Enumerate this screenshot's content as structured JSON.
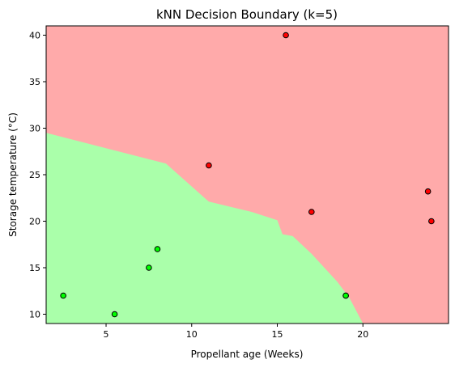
{
  "chart_data": {
    "type": "scatter",
    "title": "kNN Decision Boundary (k=5)",
    "xlabel": "Propellant age (Weeks)",
    "ylabel": "Storage temperature (°C)",
    "xlim": [
      1.5,
      25.0
    ],
    "ylim": [
      9.0,
      41.0
    ],
    "xticks": [
      "5",
      "10",
      "15",
      "20"
    ],
    "yticks": [
      "10",
      "15",
      "20",
      "25",
      "30",
      "35",
      "40"
    ],
    "grid": false,
    "legend": "none",
    "colors": {
      "red_region": "#ffaaaa",
      "green_region": "#aaffaa",
      "red_point": "#ff0000",
      "green_point": "#00ff00",
      "point_edge": "#000000"
    },
    "decision_boundary": {
      "green_region_vertices": [
        [
          1.5,
          29.5
        ],
        [
          8.5,
          26.2
        ],
        [
          11.0,
          22.1
        ],
        [
          13.5,
          21.0
        ],
        [
          15.0,
          20.1
        ],
        [
          15.3,
          18.6
        ],
        [
          15.9,
          18.4
        ],
        [
          17.0,
          16.5
        ],
        [
          18.5,
          13.5
        ],
        [
          19.2,
          11.8
        ],
        [
          20.0,
          9.0
        ],
        [
          1.5,
          9.0
        ]
      ]
    },
    "series": [
      {
        "class": "red",
        "x": [
          15.5,
          11.0,
          17.0,
          23.8,
          24.0,
          19.0
        ],
        "y": [
          40.0,
          26.0,
          21.0,
          23.2,
          20.0,
          12.0
        ]
      },
      {
        "class": "green",
        "x": [
          8.0,
          7.5,
          2.5,
          5.5,
          19.0
        ],
        "y": [
          17.0,
          15.0,
          12.0,
          10.0,
          12.0
        ]
      }
    ]
  }
}
